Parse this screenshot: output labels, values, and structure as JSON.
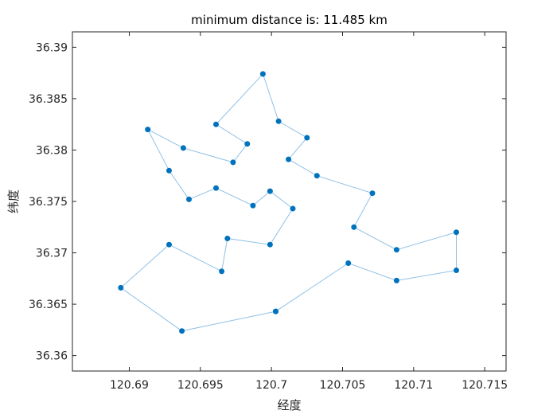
{
  "chart_data": {
    "type": "line",
    "title": "minimum distance is: 11.485 km",
    "xlabel": "经度",
    "ylabel": "纬度",
    "xlim": [
      120.686,
      120.7165
    ],
    "ylim": [
      36.3585,
      36.3915
    ],
    "xticks": [
      120.69,
      120.695,
      120.7,
      120.705,
      120.71,
      120.715
    ],
    "xtick_labels": [
      "120.69",
      "120.695",
      "120.7",
      "120.705",
      "120.71",
      "120.715"
    ],
    "yticks": [
      36.36,
      36.365,
      36.37,
      36.375,
      36.38,
      36.385,
      36.39
    ],
    "ytick_labels": [
      "36.36",
      "36.365",
      "36.37",
      "36.375",
      "36.38",
      "36.385",
      "36.39"
    ],
    "grid": false,
    "line_color": "#8fc1e6",
    "marker_color": "#0072bd",
    "series": [
      {
        "x": [
          120.7003,
          120.7054,
          120.7088,
          120.713,
          120.713,
          120.7088,
          120.7058,
          120.7071,
          120.7032,
          120.7012,
          120.7025,
          120.7005,
          120.6994,
          120.6961,
          120.6983,
          120.6973,
          120.6938,
          120.6913,
          120.6928,
          120.6942,
          120.6961,
          120.6987,
          120.6999,
          120.7015,
          120.6999,
          120.6969,
          120.6965,
          120.6928,
          120.6894,
          120.6937,
          120.7003
        ],
        "y": [
          36.3643,
          36.369,
          36.3673,
          36.3683,
          36.372,
          36.3703,
          36.3725,
          36.3758,
          36.3775,
          36.3791,
          36.3812,
          36.3828,
          36.3874,
          36.3825,
          36.3806,
          36.3788,
          36.3802,
          36.382,
          36.378,
          36.3752,
          36.3763,
          36.3746,
          36.376,
          36.3743,
          36.3708,
          36.3714,
          36.3682,
          36.3708,
          36.3666,
          36.3624,
          36.3643
        ]
      }
    ]
  }
}
